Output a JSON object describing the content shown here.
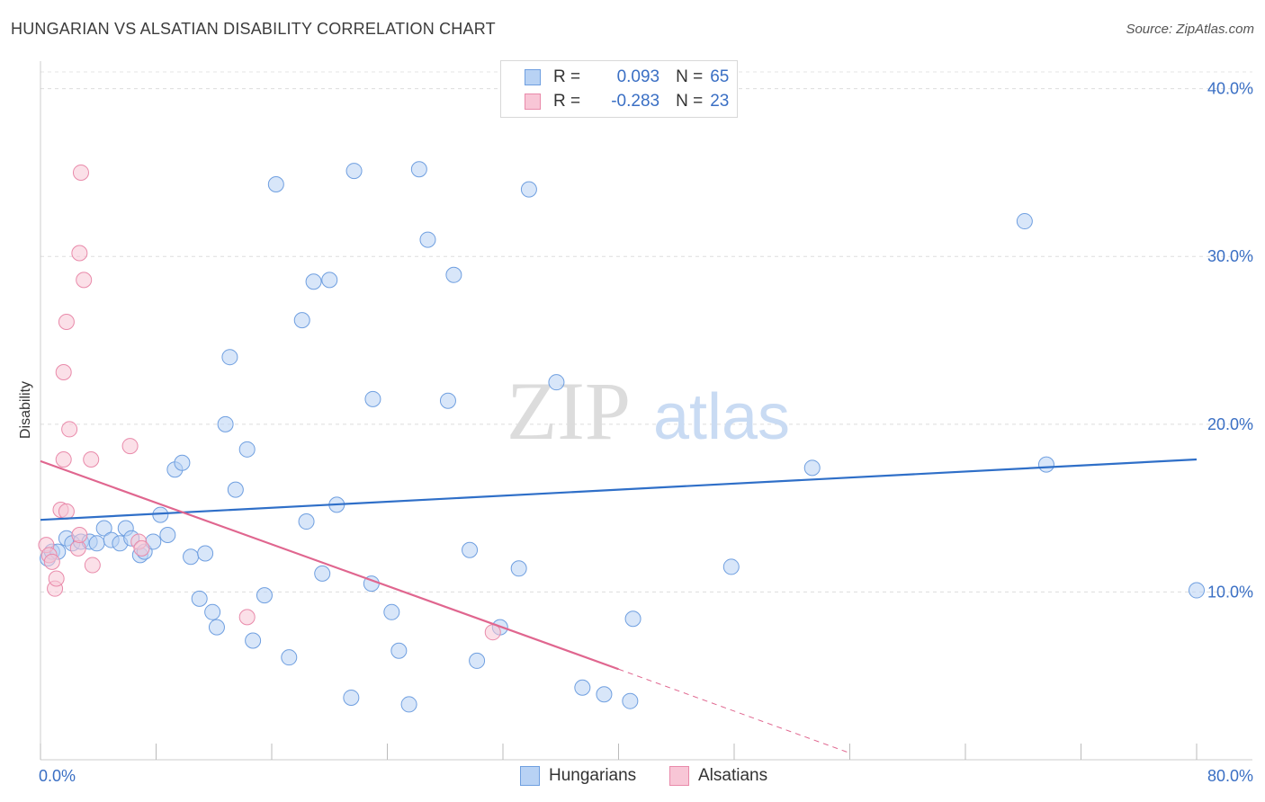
{
  "title": "HUNGARIAN VS ALSATIAN DISABILITY CORRELATION CHART",
  "source": "Source: ZipAtlas.com",
  "watermark": {
    "zip": "ZIP",
    "atlas": "atlas"
  },
  "legend": {
    "rows": [
      {
        "r_label": "R =",
        "r_value": "0.093",
        "n_label": "N =",
        "n_value": "65"
      },
      {
        "r_label": "R =",
        "r_value": "-0.283",
        "n_label": "N =",
        "n_value": "23"
      }
    ]
  },
  "colors": {
    "hungarians_fill": "#b8d2f4",
    "hungarians_stroke": "#6f9fe0",
    "hungarians_line": "#2f6fc8",
    "alsatians_fill": "#f8c6d6",
    "alsatians_stroke": "#e98aaa",
    "alsatians_line": "#e0668f"
  },
  "chart_data": {
    "type": "scatter",
    "title": "HUNGARIAN VS ALSATIAN DISABILITY CORRELATION CHART",
    "xlabel": "",
    "ylabel": "Disability",
    "xlim": [
      0,
      80
    ],
    "ylim": [
      0,
      41
    ],
    "x_tick_labels": [
      "0.0%",
      "80.0%"
    ],
    "y_ticks": [
      10,
      20,
      30,
      40
    ],
    "y_tick_labels": [
      "10.0%",
      "20.0%",
      "30.0%",
      "40.0%"
    ],
    "grid": true,
    "legend_position": "bottom-center",
    "series": [
      {
        "name": "Hungarians",
        "r": 0.093,
        "n": 65,
        "trend": {
          "x0": 0,
          "y0": 14.3,
          "x1": 80,
          "y1": 17.9
        },
        "points": [
          [
            0.5,
            12.0
          ],
          [
            0.8,
            12.4
          ],
          [
            1.2,
            12.4
          ],
          [
            1.8,
            13.2
          ],
          [
            2.2,
            12.9
          ],
          [
            2.8,
            13.0
          ],
          [
            3.4,
            13.0
          ],
          [
            3.9,
            12.9
          ],
          [
            4.4,
            13.8
          ],
          [
            4.9,
            13.1
          ],
          [
            5.5,
            12.9
          ],
          [
            5.9,
            13.8
          ],
          [
            6.3,
            13.2
          ],
          [
            6.9,
            12.2
          ],
          [
            7.2,
            12.4
          ],
          [
            7.8,
            13.0
          ],
          [
            8.3,
            14.6
          ],
          [
            8.8,
            13.4
          ],
          [
            9.3,
            17.3
          ],
          [
            9.8,
            17.7
          ],
          [
            10.4,
            12.1
          ],
          [
            11.0,
            9.6
          ],
          [
            11.4,
            12.3
          ],
          [
            11.9,
            8.8
          ],
          [
            12.2,
            7.9
          ],
          [
            12.8,
            20.0
          ],
          [
            13.1,
            24.0
          ],
          [
            13.5,
            16.1
          ],
          [
            14.3,
            18.5
          ],
          [
            14.7,
            7.1
          ],
          [
            15.5,
            9.8
          ],
          [
            16.3,
            34.3
          ],
          [
            17.2,
            6.1
          ],
          [
            18.1,
            26.2
          ],
          [
            18.4,
            14.2
          ],
          [
            18.9,
            28.5
          ],
          [
            19.5,
            11.1
          ],
          [
            20.0,
            28.6
          ],
          [
            20.5,
            15.2
          ],
          [
            21.5,
            3.7
          ],
          [
            21.7,
            35.1
          ],
          [
            23.0,
            21.5
          ],
          [
            22.9,
            10.5
          ],
          [
            24.3,
            8.8
          ],
          [
            24.8,
            6.5
          ],
          [
            25.5,
            3.3
          ],
          [
            26.2,
            35.2
          ],
          [
            26.8,
            31.0
          ],
          [
            28.2,
            21.4
          ],
          [
            28.6,
            28.9
          ],
          [
            29.7,
            12.5
          ],
          [
            30.2,
            5.9
          ],
          [
            31.8,
            7.9
          ],
          [
            33.1,
            11.4
          ],
          [
            33.8,
            34.0
          ],
          [
            35.7,
            22.5
          ],
          [
            37.5,
            4.3
          ],
          [
            39.0,
            3.9
          ],
          [
            40.8,
            3.5
          ],
          [
            41.0,
            8.4
          ],
          [
            47.8,
            11.5
          ],
          [
            53.4,
            17.4
          ],
          [
            68.1,
            32.1
          ],
          [
            69.6,
            17.6
          ],
          [
            80.0,
            10.1
          ]
        ]
      },
      {
        "name": "Alsatians",
        "r": -0.283,
        "n": 23,
        "trend": {
          "x0": 0,
          "y0": 17.8,
          "x1": 40,
          "y1": 5.4,
          "dash_x1": 56,
          "dash_y1": 0.4
        },
        "points": [
          [
            0.4,
            12.8
          ],
          [
            0.6,
            12.2
          ],
          [
            0.8,
            11.8
          ],
          [
            1.0,
            10.2
          ],
          [
            1.1,
            10.8
          ],
          [
            1.4,
            14.9
          ],
          [
            1.6,
            17.9
          ],
          [
            1.6,
            23.1
          ],
          [
            1.8,
            26.1
          ],
          [
            1.8,
            14.8
          ],
          [
            2.0,
            19.7
          ],
          [
            2.6,
            12.6
          ],
          [
            2.7,
            13.4
          ],
          [
            2.7,
            30.2
          ],
          [
            2.8,
            35.0
          ],
          [
            3.0,
            28.6
          ],
          [
            3.5,
            17.9
          ],
          [
            3.6,
            11.6
          ],
          [
            6.2,
            18.7
          ],
          [
            6.8,
            13.0
          ],
          [
            7.0,
            12.6
          ],
          [
            14.3,
            8.5
          ],
          [
            31.3,
            7.6
          ]
        ]
      }
    ]
  }
}
